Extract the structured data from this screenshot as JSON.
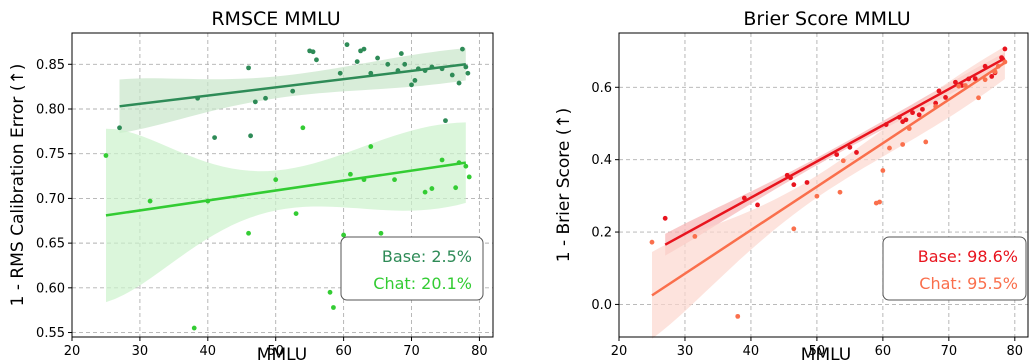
{
  "chart_data": [
    {
      "type": "scatter",
      "title": "RMSCE MMLU",
      "xlabel": "MMLU",
      "ylabel": "1 - RMS Calibration Error (↑)",
      "xlim": [
        20,
        82
      ],
      "ylim": [
        0.545,
        0.885
      ],
      "xticks": [
        "20",
        "30",
        "40",
        "50",
        "60",
        "70",
        "80"
      ],
      "yticks": [
        "0.55",
        "0.60",
        "0.65",
        "0.70",
        "0.75",
        "0.80",
        "0.85"
      ],
      "grid": true,
      "legend_position": "bottom-right",
      "series": [
        {
          "name": "Base: 2.5%",
          "color": "#2e8b57",
          "band_color": "#c8e6c9",
          "fit": {
            "x": [
              27,
              78
            ],
            "y": [
              0.803,
              0.85
            ],
            "band_half": [
              0.03,
              0.018
            ],
            "band_mid": 0.012
          },
          "points": [
            [
              27,
              0.779
            ],
            [
              38.5,
              0.812
            ],
            [
              41,
              0.768
            ],
            [
              46,
              0.846
            ],
            [
              46.3,
              0.77
            ],
            [
              47,
              0.808
            ],
            [
              48.5,
              0.812
            ],
            [
              52.5,
              0.82
            ],
            [
              55,
              0.865
            ],
            [
              55.5,
              0.864
            ],
            [
              56,
              0.855
            ],
            [
              59.5,
              0.84
            ],
            [
              60.5,
              0.872
            ],
            [
              62,
              0.853
            ],
            [
              62.5,
              0.865
            ],
            [
              63,
              0.867
            ],
            [
              64,
              0.84
            ],
            [
              65,
              0.857
            ],
            [
              66.5,
              0.85
            ],
            [
              68,
              0.843
            ],
            [
              68.5,
              0.862
            ],
            [
              69,
              0.85
            ],
            [
              70,
              0.827
            ],
            [
              70.5,
              0.832
            ],
            [
              71,
              0.845
            ],
            [
              72,
              0.843
            ],
            [
              73,
              0.847
            ],
            [
              74.5,
              0.845
            ],
            [
              75,
              0.787
            ],
            [
              76,
              0.838
            ],
            [
              77,
              0.829
            ],
            [
              77.5,
              0.867
            ],
            [
              78,
              0.847
            ],
            [
              78.3,
              0.84
            ]
          ]
        },
        {
          "name": "Chat: 20.1%",
          "color": "#33cc33",
          "band_color": "#ccf2cc",
          "fit": {
            "x": [
              25,
              78
            ],
            "y": [
              0.681,
              0.74
            ],
            "band_half": [
              0.097,
              0.045
            ],
            "band_mid": 0.022
          },
          "points": [
            [
              25,
              0.748
            ],
            [
              31.5,
              0.697
            ],
            [
              38,
              0.555
            ],
            [
              40,
              0.697
            ],
            [
              46,
              0.661
            ],
            [
              50,
              0.721
            ],
            [
              53,
              0.683
            ],
            [
              54,
              0.779
            ],
            [
              58,
              0.595
            ],
            [
              58.5,
              0.578
            ],
            [
              60,
              0.659
            ],
            [
              61,
              0.727
            ],
            [
              63,
              0.721
            ],
            [
              64,
              0.758
            ],
            [
              65.5,
              0.661
            ],
            [
              67.5,
              0.721
            ],
            [
              72,
              0.707
            ],
            [
              73,
              0.711
            ],
            [
              74.5,
              0.743
            ],
            [
              76.5,
              0.712
            ],
            [
              77,
              0.74
            ],
            [
              78,
              0.736
            ],
            [
              78.5,
              0.724
            ]
          ]
        }
      ]
    },
    {
      "type": "scatter",
      "title": "Brier Score MMLU",
      "xlabel": "MMLU",
      "ylabel": "1 - Brier Score (↑)",
      "xlim": [
        20,
        82
      ],
      "ylim": [
        -0.09,
        0.75
      ],
      "xticks": [
        "20",
        "30",
        "40",
        "50",
        "60",
        "70",
        "80"
      ],
      "yticks": [
        "0.0",
        "0.2",
        "0.4",
        "0.6"
      ],
      "grid": true,
      "legend_position": "bottom-right",
      "series": [
        {
          "name": "Base: 98.6%",
          "color": "#e8141e",
          "band_color": "#f7b3b3",
          "fit": {
            "x": [
              27,
              78.5
            ],
            "y": [
              0.165,
              0.68
            ],
            "band_half": [
              0.03,
              0.016
            ],
            "band_mid": 0.01
          },
          "points": [
            [
              27,
              0.238
            ],
            [
              39,
              0.294
            ],
            [
              41,
              0.275
            ],
            [
              45.5,
              0.357
            ],
            [
              46,
              0.35
            ],
            [
              46.5,
              0.331
            ],
            [
              48.5,
              0.337
            ],
            [
              53,
              0.414
            ],
            [
              55,
              0.434
            ],
            [
              56,
              0.42
            ],
            [
              60.5,
              0.497
            ],
            [
              62.5,
              0.517
            ],
            [
              63,
              0.505
            ],
            [
              63.5,
              0.51
            ],
            [
              64.5,
              0.53
            ],
            [
              65.5,
              0.524
            ],
            [
              66,
              0.539
            ],
            [
              68,
              0.556
            ],
            [
              68.5,
              0.59
            ],
            [
              69.5,
              0.572
            ],
            [
              71,
              0.614
            ],
            [
              72,
              0.605
            ],
            [
              73,
              0.623
            ],
            [
              74,
              0.624
            ],
            [
              75.5,
              0.658
            ],
            [
              76.5,
              0.63
            ],
            [
              77,
              0.64
            ],
            [
              78,
              0.682
            ],
            [
              78.5,
              0.706
            ]
          ]
        },
        {
          "name": "Chat: 95.5%",
          "color": "#fa6f4c",
          "band_color": "#fcd7cf",
          "fit": {
            "x": [
              25,
              78.5
            ],
            "y": [
              0.025,
              0.668
            ],
            "band_half": [
              0.12,
              0.045
            ],
            "band_mid": 0.03
          },
          "points": [
            [
              25,
              0.172
            ],
            [
              31.5,
              0.188
            ],
            [
              38,
              -0.033
            ],
            [
              46.5,
              0.209
            ],
            [
              50,
              0.299
            ],
            [
              53.5,
              0.31
            ],
            [
              54,
              0.397
            ],
            [
              59,
              0.28
            ],
            [
              59.5,
              0.283
            ],
            [
              60,
              0.37
            ],
            [
              61,
              0.432
            ],
            [
              63,
              0.442
            ],
            [
              64,
              0.486
            ],
            [
              66.5,
              0.449
            ],
            [
              68,
              0.547
            ],
            [
              71.5,
              0.603
            ],
            [
              72.5,
              0.605
            ],
            [
              74.5,
              0.571
            ],
            [
              75.5,
              0.621
            ],
            [
              77,
              0.643
            ],
            [
              77.5,
              0.658
            ],
            [
              78.5,
              0.67
            ]
          ]
        }
      ]
    }
  ]
}
